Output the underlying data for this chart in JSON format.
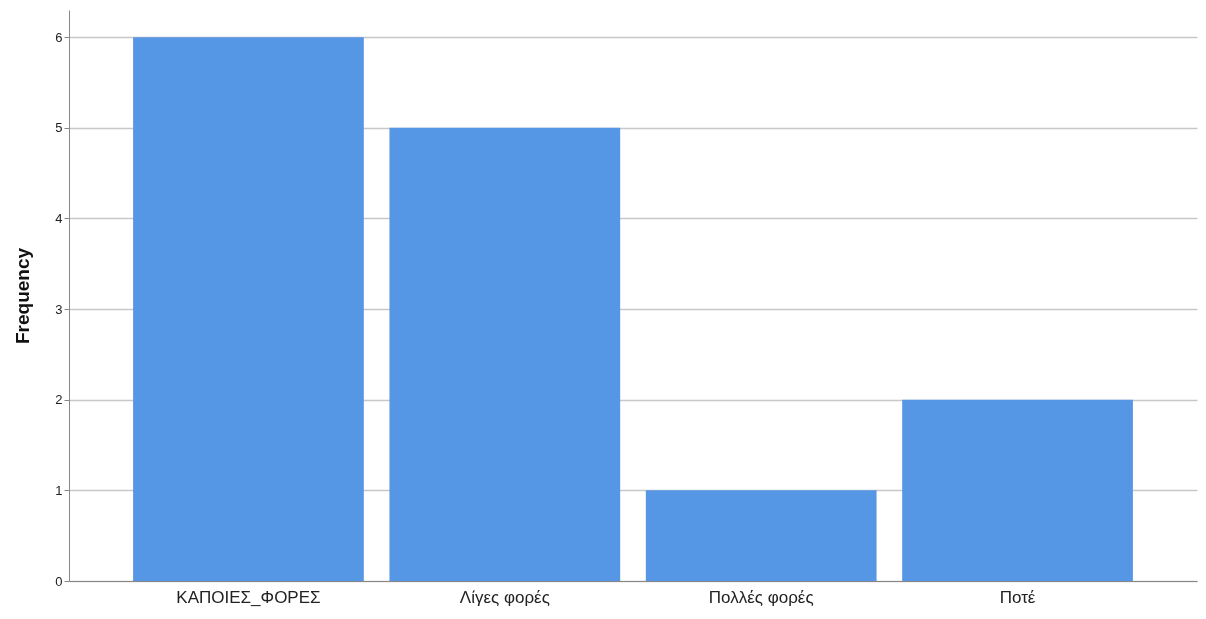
{
  "chart_data": {
    "type": "bar",
    "ylabel": "Frequency",
    "categories": [
      "ΚΑΠΟΙΕΣ_ΦΟΡΕΣ",
      "Λίγες φορές",
      "Πολλές φορές",
      "Ποτέ"
    ],
    "values": [
      6,
      5,
      1,
      2
    ],
    "color": "#5596e5",
    "ylim": [
      0,
      6.3
    ],
    "yticks": [
      0,
      1,
      2,
      3,
      4,
      5,
      6
    ],
    "grid": "y"
  }
}
